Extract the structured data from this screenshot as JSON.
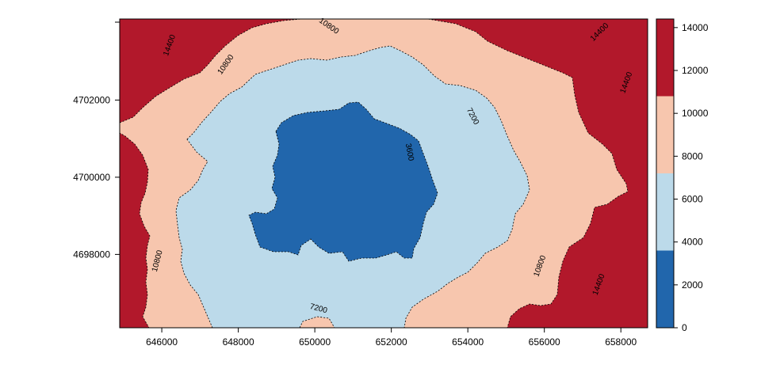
{
  "chart_data": {
    "type": "heatmap",
    "subtype": "filled contour map with contour lines",
    "title": "",
    "xlabel": "",
    "ylabel": "",
    "xlim": [
      644900,
      658700
    ],
    "ylim": [
      4696100,
      4704100
    ],
    "x_ticks": [
      646000,
      648000,
      650000,
      652000,
      654000,
      656000,
      658000
    ],
    "x_tick_labels": [
      "646000",
      "648000",
      "650000",
      "652000",
      "654000",
      "656000",
      "658000"
    ],
    "y_ticks": [
      4698000,
      4700000,
      4702000
    ],
    "y_tick_labels": [
      "4698000",
      "4700000",
      "4702000"
    ],
    "levels": [
      0,
      3600,
      7200,
      10800,
      14400
    ],
    "bands": [
      {
        "from": 0,
        "to": 3600,
        "color": "#2166ac"
      },
      {
        "from": 3600,
        "to": 7200,
        "color": "#bcdaea"
      },
      {
        "from": 7200,
        "to": 10800,
        "color": "#f7c6ae"
      },
      {
        "from": 10800,
        "to": 14400,
        "color": "#b2182b"
      }
    ],
    "colorbar": {
      "ticks": [
        0,
        2000,
        4000,
        6000,
        8000,
        10000,
        12000,
        14000
      ],
      "labels": [
        "0",
        "2000",
        "4000",
        "6000",
        "8000",
        "10000",
        "12000",
        "14000"
      ],
      "placement": "right"
    },
    "contour_labels": [
      {
        "text": "3600",
        "x": 652480,
        "y": 4700650,
        "angle": 80
      },
      {
        "text": "7200",
        "x": 654130,
        "y": 4701580,
        "angle": 62
      },
      {
        "text": "7200",
        "x": 650100,
        "y": 4696600,
        "angle": 15
      },
      {
        "text": "10800",
        "x": 647670,
        "y": 4702920,
        "angle": -55
      },
      {
        "text": "10800",
        "x": 645880,
        "y": 4697830,
        "angle": -75
      },
      {
        "text": "10800",
        "x": 655880,
        "y": 4697700,
        "angle": -70
      },
      {
        "text": "10800",
        "x": 650370,
        "y": 4703920,
        "angle": 35
      },
      {
        "text": "14400",
        "x": 646200,
        "y": 4703420,
        "angle": -70
      },
      {
        "text": "14400",
        "x": 657440,
        "y": 4703760,
        "angle": -45
      },
      {
        "text": "14400",
        "x": 658140,
        "y": 4702450,
        "angle": -70
      },
      {
        "text": "14400",
        "x": 657420,
        "y": 4697220,
        "angle": -70
      }
    ]
  }
}
